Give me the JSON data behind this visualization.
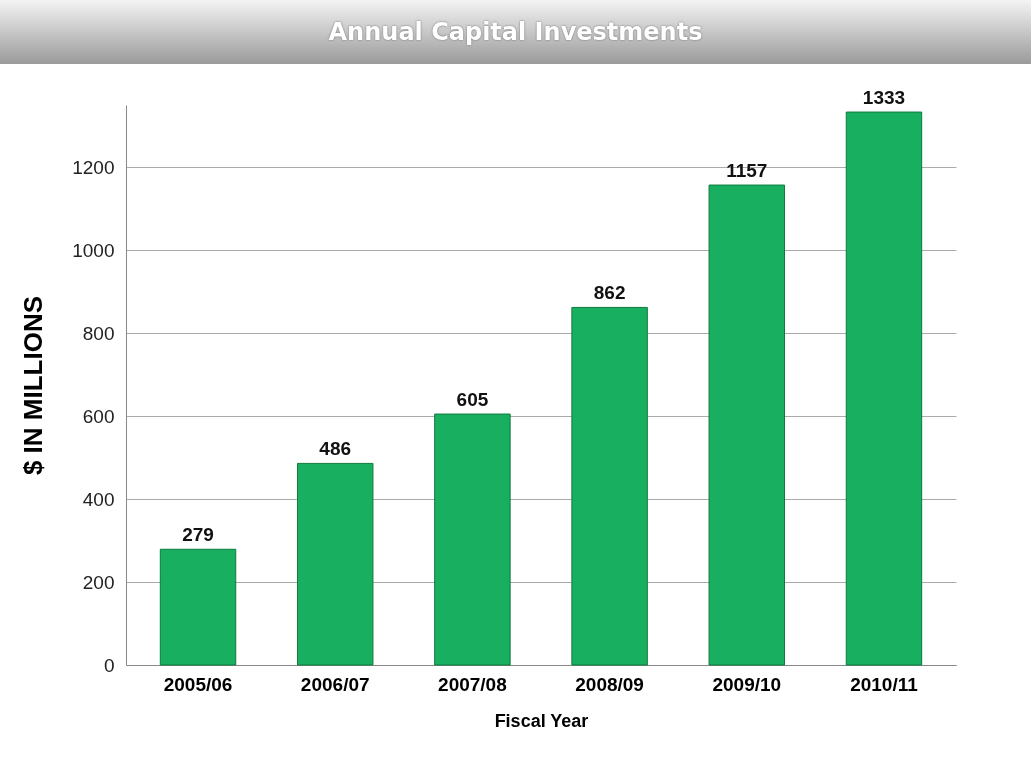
{
  "chart_data": {
    "type": "bar",
    "title": "Annual Capital Investments",
    "xlabel": "Fiscal Year",
    "ylabel": "$ IN MILLIONS",
    "categories": [
      "2005/06",
      "2006/07",
      "2007/08",
      "2008/09",
      "2009/10",
      "2010/11"
    ],
    "values": [
      279,
      486,
      605,
      862,
      1157,
      1333
    ],
    "color": "#18b060",
    "ylim": [
      0,
      1350
    ],
    "yticks": [
      0,
      200,
      400,
      600,
      800,
      1000,
      1200
    ],
    "grid": "y",
    "data_labels": true
  }
}
